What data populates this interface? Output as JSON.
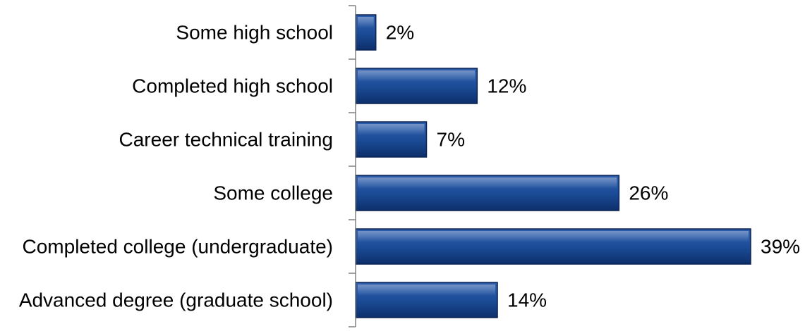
{
  "chart_data": {
    "type": "bar",
    "orientation": "horizontal",
    "categories": [
      "Some high school",
      "Completed high school",
      "Career technical training",
      "Some college",
      "Completed college (undergraduate)",
      "Advanced degree (graduate school)"
    ],
    "values": [
      2,
      12,
      7,
      26,
      39,
      14
    ],
    "value_labels": [
      "2%",
      "12%",
      "7%",
      "26%",
      "39%",
      "14%"
    ],
    "unit": "%",
    "xlim": [
      0,
      39
    ],
    "grid": false,
    "legend": "none",
    "colors": {
      "bar_top": "#2a5aa8",
      "bar_mid": "#1a4a94",
      "bar_bottom": "#0d2f6a",
      "bar_edge": "#0a2454",
      "axis": "#808080",
      "text": "#000000"
    }
  }
}
